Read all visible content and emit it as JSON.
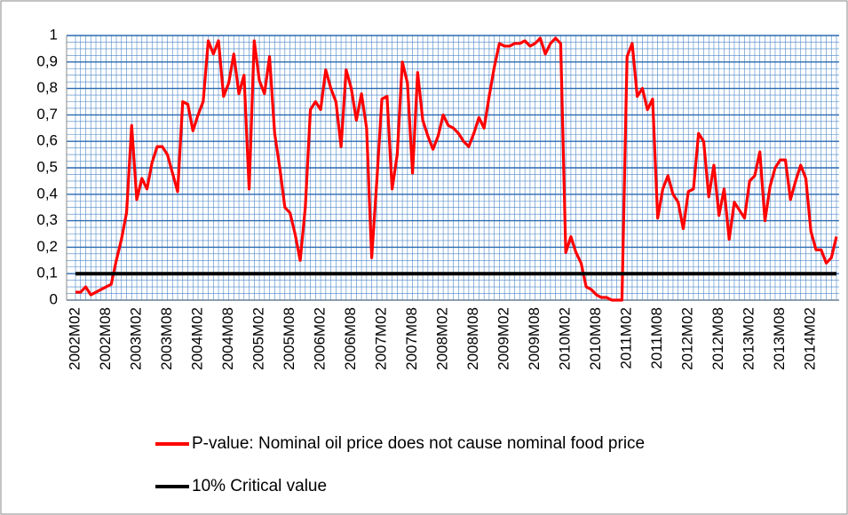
{
  "chart_data": {
    "type": "line",
    "categories": [
      "2002M02",
      null,
      null,
      null,
      null,
      null,
      "2002M08",
      null,
      null,
      null,
      null,
      null,
      "2003M02",
      null,
      null,
      null,
      null,
      null,
      "2003M08",
      null,
      null,
      null,
      null,
      null,
      "2004M02",
      null,
      null,
      null,
      null,
      null,
      "2004M08",
      null,
      null,
      null,
      null,
      null,
      "2005M02",
      null,
      null,
      null,
      null,
      null,
      "2005M08",
      null,
      null,
      null,
      null,
      null,
      "2006M02",
      null,
      null,
      null,
      null,
      null,
      "2006M08",
      null,
      null,
      null,
      null,
      null,
      "2007M02",
      null,
      null,
      null,
      null,
      null,
      "2007M08",
      null,
      null,
      null,
      null,
      null,
      "2008M02",
      null,
      null,
      null,
      null,
      null,
      "2008M08",
      null,
      null,
      null,
      null,
      null,
      "2009M02",
      null,
      null,
      null,
      null,
      null,
      "2009M08",
      null,
      null,
      null,
      null,
      null,
      "2010M02",
      null,
      null,
      null,
      null,
      null,
      "2010M08",
      null,
      null,
      null,
      null,
      null,
      "2011M02",
      null,
      null,
      null,
      null,
      null,
      "2011M08",
      null,
      null,
      null,
      null,
      null,
      "2012M02",
      null,
      null,
      null,
      null,
      null,
      "2012M08",
      null,
      null,
      null,
      null,
      null,
      "2013M02",
      null,
      null,
      null,
      null,
      null,
      "2013M08",
      null,
      null,
      null,
      null,
      null,
      "2014M02",
      null,
      null,
      null,
      null,
      null
    ],
    "series": [
      {
        "name": "P-value: Nominal oil price does not cause nominal food price",
        "color": "#ff0000",
        "values": [
          0.03,
          0.03,
          0.05,
          0.02,
          0.03,
          0.04,
          0.05,
          0.06,
          0.15,
          0.23,
          0.33,
          0.66,
          0.38,
          0.46,
          0.42,
          0.52,
          0.58,
          0.58,
          0.55,
          0.48,
          0.41,
          0.75,
          0.74,
          0.64,
          0.7,
          0.75,
          0.98,
          0.93,
          0.98,
          0.77,
          0.82,
          0.93,
          0.78,
          0.85,
          0.42,
          0.98,
          0.83,
          0.78,
          0.92,
          0.63,
          0.5,
          0.35,
          0.33,
          0.25,
          0.15,
          0.35,
          0.72,
          0.75,
          0.72,
          0.87,
          0.8,
          0.75,
          0.58,
          0.87,
          0.8,
          0.68,
          0.78,
          0.65,
          0.16,
          0.45,
          0.76,
          0.77,
          0.42,
          0.55,
          0.9,
          0.82,
          0.48,
          0.86,
          0.68,
          0.62,
          0.57,
          0.62,
          0.7,
          0.66,
          0.65,
          0.63,
          0.6,
          0.58,
          0.63,
          0.69,
          0.65,
          0.77,
          0.88,
          0.97,
          0.96,
          0.96,
          0.97,
          0.97,
          0.98,
          0.96,
          0.97,
          0.99,
          0.93,
          0.97,
          0.99,
          0.97,
          0.18,
          0.24,
          0.18,
          0.14,
          0.05,
          0.04,
          0.02,
          0.01,
          0.01,
          0,
          0,
          0,
          0.92,
          0.97,
          0.77,
          0.8,
          0.72,
          0.76,
          0.31,
          0.42,
          0.47,
          0.4,
          0.37,
          0.27,
          0.41,
          0.42,
          0.63,
          0.6,
          0.39,
          0.51,
          0.32,
          0.42,
          0.23,
          0.37,
          0.34,
          0.31,
          0.45,
          0.47,
          0.56,
          0.3,
          0.43,
          0.5,
          0.53,
          0.53,
          0.38,
          0.45,
          0.51,
          0.46,
          0.26,
          0.19,
          0.19,
          0.14,
          0.16,
          0.24
        ]
      },
      {
        "name": "10% Critical value",
        "color": "#000000",
        "values": [
          0.1,
          0.1,
          0.1,
          0.1,
          0.1,
          0.1,
          0.1,
          0.1,
          0.1,
          0.1,
          0.1,
          0.1,
          0.1,
          0.1,
          0.1,
          0.1,
          0.1,
          0.1,
          0.1,
          0.1,
          0.1,
          0.1,
          0.1,
          0.1,
          0.1,
          0.1,
          0.1,
          0.1,
          0.1,
          0.1,
          0.1,
          0.1,
          0.1,
          0.1,
          0.1,
          0.1,
          0.1,
          0.1,
          0.1,
          0.1,
          0.1,
          0.1,
          0.1,
          0.1,
          0.1,
          0.1,
          0.1,
          0.1,
          0.1,
          0.1,
          0.1,
          0.1,
          0.1,
          0.1,
          0.1,
          0.1,
          0.1,
          0.1,
          0.1,
          0.1,
          0.1,
          0.1,
          0.1,
          0.1,
          0.1,
          0.1,
          0.1,
          0.1,
          0.1,
          0.1,
          0.1,
          0.1,
          0.1,
          0.1,
          0.1,
          0.1,
          0.1,
          0.1,
          0.1,
          0.1,
          0.1,
          0.1,
          0.1,
          0.1,
          0.1,
          0.1,
          0.1,
          0.1,
          0.1,
          0.1,
          0.1,
          0.1,
          0.1,
          0.1,
          0.1,
          0.1,
          0.1,
          0.1,
          0.1,
          0.1,
          0.1,
          0.1,
          0.1,
          0.1,
          0.1,
          0.1,
          0.1,
          0.1,
          0.1,
          0.1,
          0.1,
          0.1,
          0.1,
          0.1,
          0.1,
          0.1,
          0.1,
          0.1,
          0.1,
          0.1,
          0.1,
          0.1,
          0.1,
          0.1,
          0.1,
          0.1,
          0.1,
          0.1,
          0.1,
          0.1,
          0.1,
          0.1,
          0.1,
          0.1,
          0.1,
          0.1,
          0.1,
          0.1,
          0.1,
          0.1,
          0.1,
          0.1,
          0.1,
          0.1,
          0.1,
          0.1,
          0.1,
          0.1,
          0.1,
          0.1
        ]
      }
    ],
    "ylim": [
      0,
      1
    ],
    "yticks": [
      0,
      {
        "value": 0.1,
        "label": "0,1"
      },
      {
        "value": 0.2,
        "label": "0,2"
      },
      {
        "value": 0.3,
        "label": "0,3"
      },
      {
        "value": 0.4,
        "label": "0,4"
      },
      {
        "value": 0.5,
        "label": "0,5"
      },
      {
        "value": 0.6,
        "label": "0,6"
      },
      {
        "value": 0.7,
        "label": "0,7"
      },
      {
        "value": 0.8,
        "label": "0,8"
      },
      {
        "value": 0.9,
        "label": "0,9"
      },
      1
    ],
    "grid": true,
    "legend": "bottom"
  }
}
